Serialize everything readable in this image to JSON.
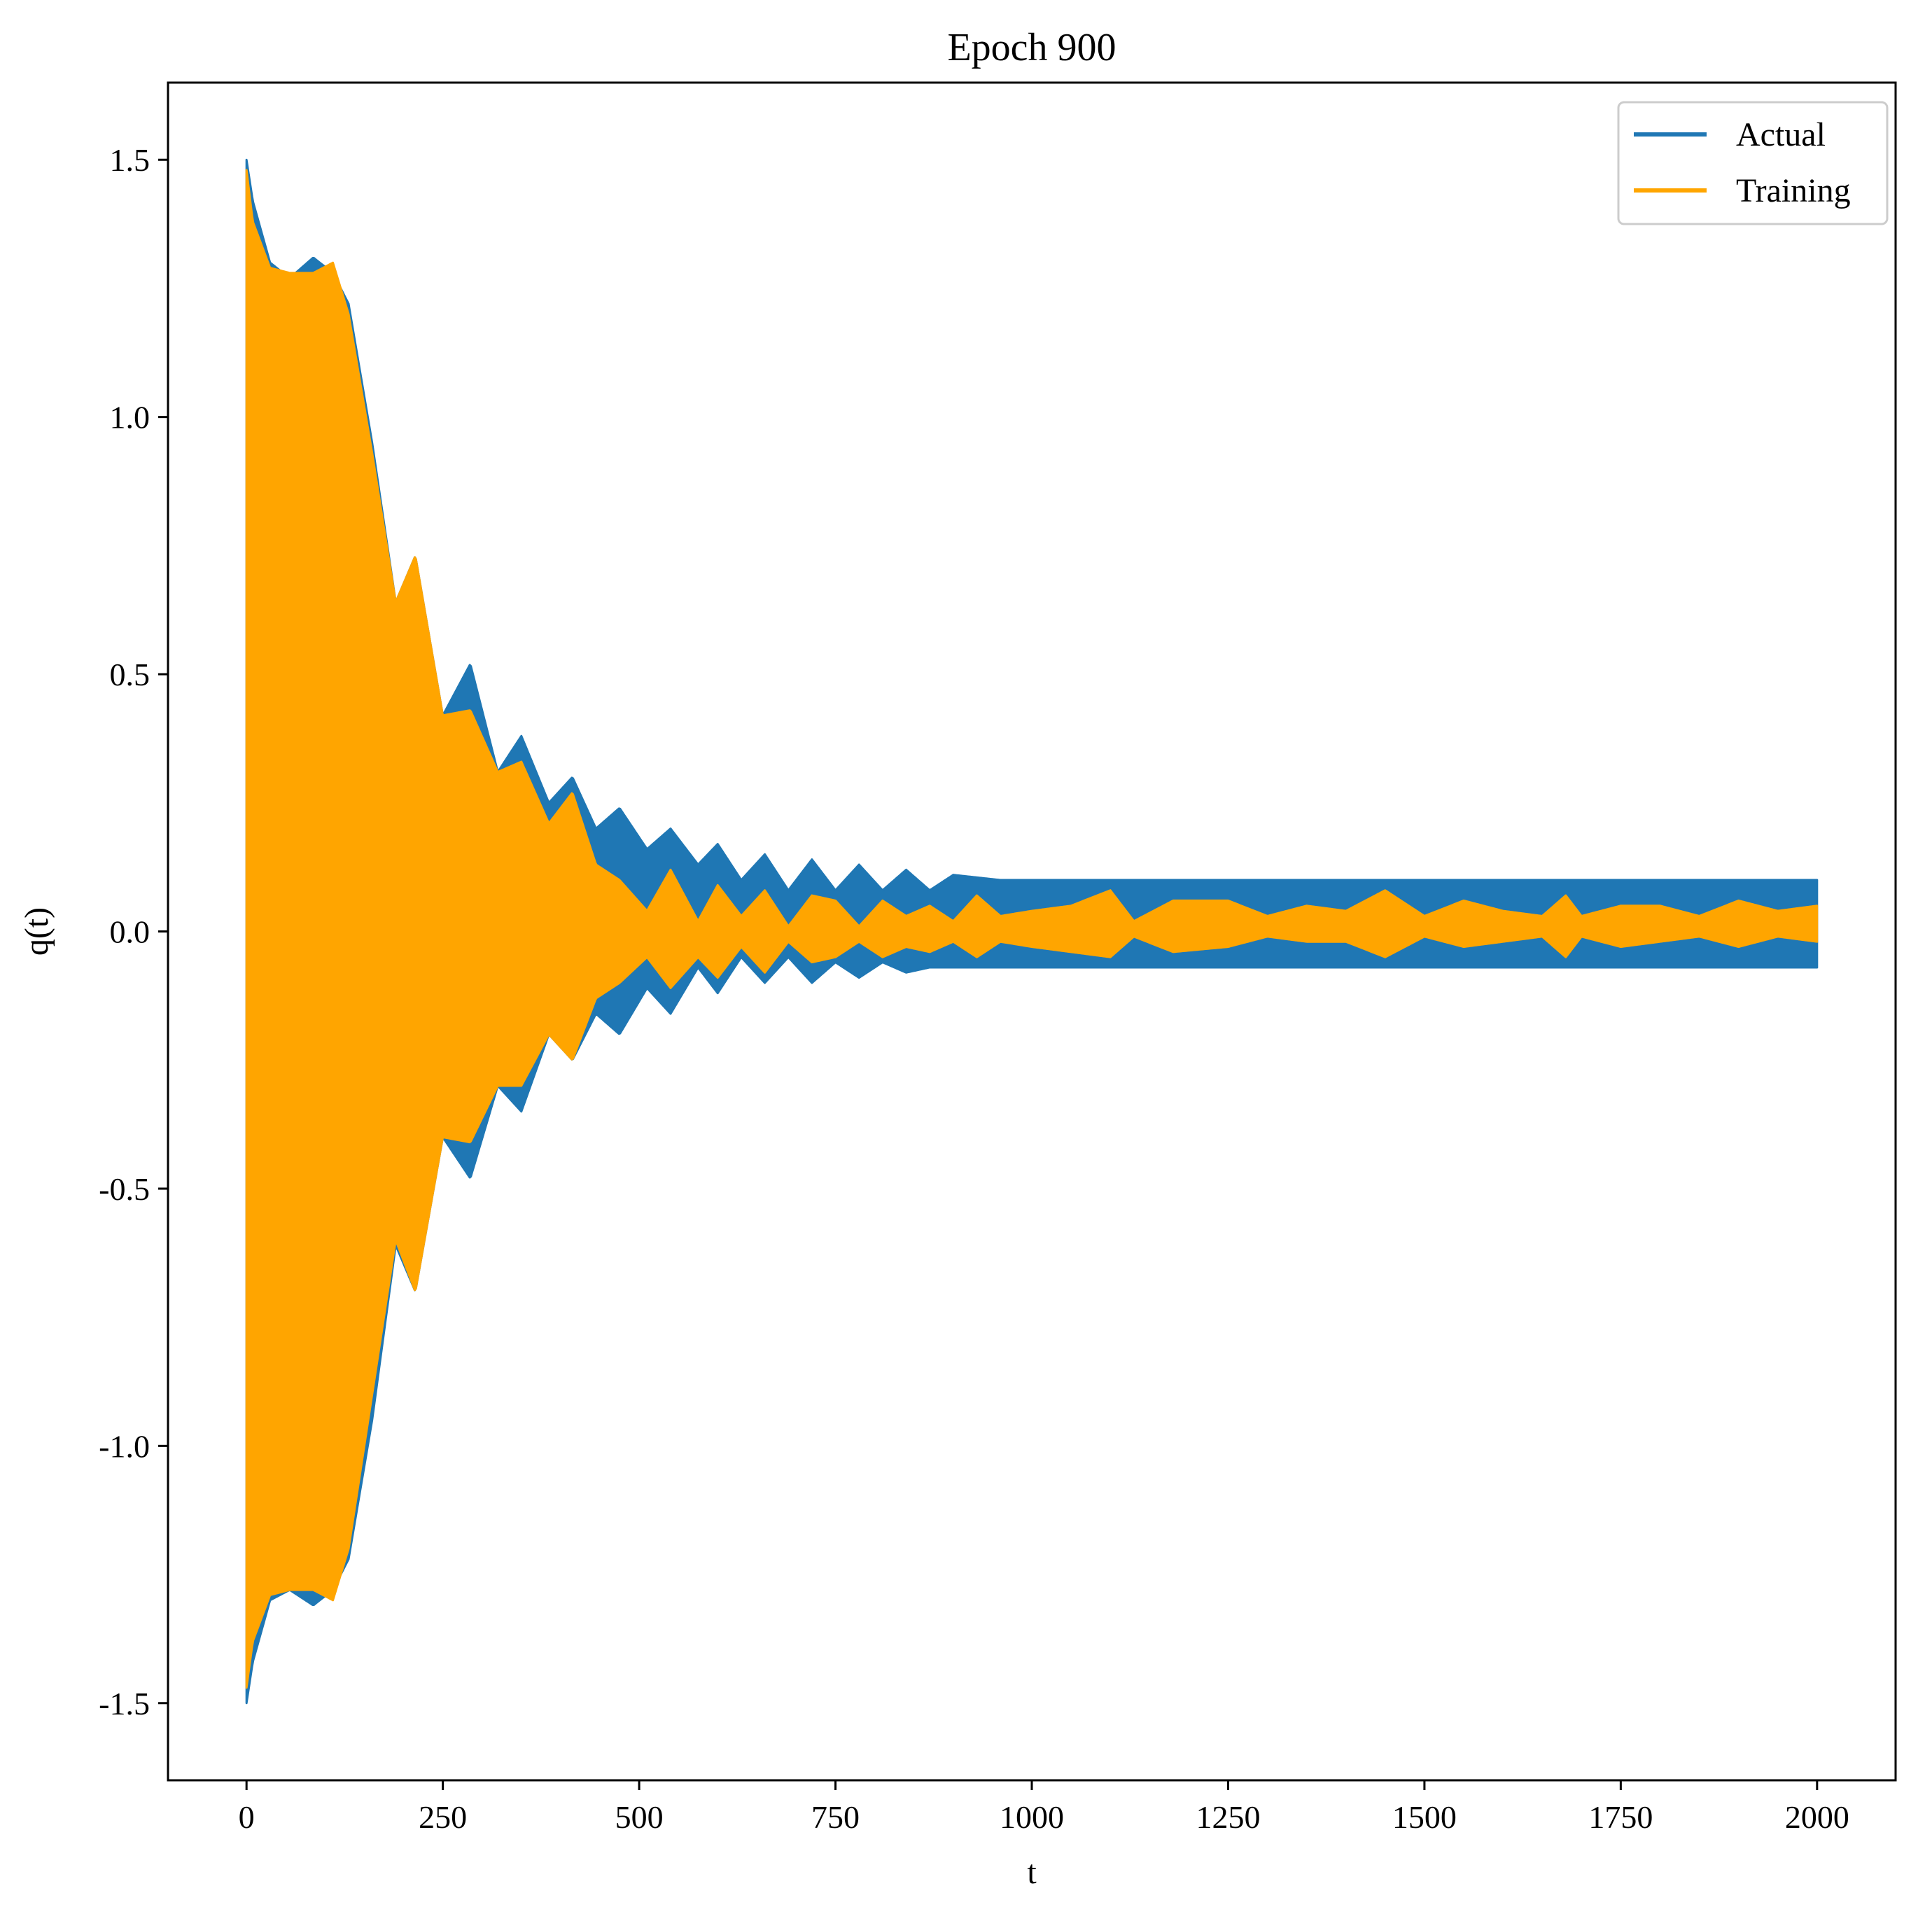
{
  "chart_data": {
    "type": "line",
    "title": "Epoch 900",
    "xlabel": "t",
    "ylabel": "q(t)",
    "xlim": [
      -100,
      2100
    ],
    "ylim": [
      -1.65,
      1.65
    ],
    "grid": false,
    "legend_position": "top-right",
    "x_ticks": [
      0,
      250,
      500,
      750,
      1000,
      1250,
      1500,
      1750,
      2000
    ],
    "x_tick_labels": [
      "0",
      "250",
      "500",
      "750",
      "1000",
      "1250",
      "1500",
      "1750",
      "2000"
    ],
    "y_ticks": [
      1.5,
      1.0,
      0.5,
      0.0,
      -0.5,
      -1.0,
      -1.5
    ],
    "y_tick_labels": [
      "1.5",
      "1.0",
      "0.5",
      "0.0",
      "-0.5",
      "-1.0",
      "-1.5"
    ],
    "series": [
      {
        "name": "Actual",
        "color": "#1f77b4",
        "envelope_t": [
          0,
          8,
          30,
          55,
          85,
          110,
          130,
          160,
          190,
          215,
          250,
          285,
          320,
          350,
          385,
          415,
          445,
          475,
          510,
          540,
          575,
          600,
          630,
          660,
          690,
          720,
          750,
          780,
          810,
          840,
          870,
          900,
          960,
          1000,
          1100,
          1200,
          1300,
          1500,
          1700,
          1900,
          2000
        ],
        "envelope_upper": [
          1.5,
          1.42,
          1.3,
          1.27,
          1.31,
          1.28,
          1.22,
          0.95,
          0.64,
          0.73,
          0.42,
          0.52,
          0.31,
          0.38,
          0.25,
          0.3,
          0.2,
          0.24,
          0.16,
          0.2,
          0.13,
          0.17,
          0.1,
          0.15,
          0.08,
          0.14,
          0.08,
          0.13,
          0.08,
          0.12,
          0.08,
          0.11,
          0.1,
          0.1,
          0.1,
          0.1,
          0.1,
          0.1,
          0.1,
          0.1,
          0.1
        ],
        "envelope_lower": [
          -1.5,
          -1.42,
          -1.3,
          -1.28,
          -1.31,
          -1.28,
          -1.22,
          -0.95,
          -0.61,
          -0.7,
          -0.4,
          -0.48,
          -0.3,
          -0.35,
          -0.2,
          -0.25,
          -0.16,
          -0.2,
          -0.11,
          -0.16,
          -0.07,
          -0.12,
          -0.05,
          -0.1,
          -0.05,
          -0.1,
          -0.06,
          -0.09,
          -0.06,
          -0.08,
          -0.07,
          -0.07,
          -0.07,
          -0.07,
          -0.07,
          -0.07,
          -0.07,
          -0.07,
          -0.07,
          -0.07,
          -0.07
        ]
      },
      {
        "name": "Training",
        "color": "#ffa500",
        "envelope_t": [
          0,
          8,
          30,
          55,
          85,
          110,
          130,
          160,
          190,
          215,
          250,
          285,
          320,
          350,
          385,
          415,
          445,
          475,
          510,
          540,
          575,
          600,
          630,
          660,
          690,
          720,
          750,
          780,
          810,
          840,
          870,
          900,
          930,
          960,
          1000,
          1050,
          1100,
          1130,
          1180,
          1250,
          1300,
          1350,
          1400,
          1450,
          1500,
          1550,
          1600,
          1650,
          1680,
          1700,
          1750,
          1800,
          1850,
          1900,
          1950,
          2000
        ],
        "envelope_upper": [
          1.48,
          1.38,
          1.29,
          1.28,
          1.28,
          1.3,
          1.2,
          0.93,
          0.64,
          0.73,
          0.42,
          0.43,
          0.31,
          0.33,
          0.21,
          0.27,
          0.13,
          0.1,
          0.04,
          0.12,
          0.02,
          0.09,
          0.03,
          0.08,
          0.01,
          0.07,
          0.06,
          0.01,
          0.06,
          0.03,
          0.05,
          0.02,
          0.07,
          0.03,
          0.04,
          0.05,
          0.08,
          0.02,
          0.06,
          0.06,
          0.03,
          0.05,
          0.04,
          0.08,
          0.03,
          0.06,
          0.04,
          0.03,
          0.07,
          0.03,
          0.05,
          0.05,
          0.03,
          0.06,
          0.04,
          0.05
        ],
        "envelope_lower": [
          -1.47,
          -1.38,
          -1.29,
          -1.28,
          -1.28,
          -1.3,
          -1.2,
          -0.9,
          -0.6,
          -0.7,
          -0.4,
          -0.41,
          -0.3,
          -0.3,
          -0.2,
          -0.25,
          -0.13,
          -0.1,
          -0.05,
          -0.11,
          -0.05,
          -0.09,
          -0.03,
          -0.08,
          -0.02,
          -0.06,
          -0.05,
          -0.02,
          -0.05,
          -0.03,
          -0.04,
          -0.02,
          -0.05,
          -0.02,
          -0.03,
          -0.04,
          -0.05,
          -0.01,
          -0.04,
          -0.03,
          -0.01,
          -0.02,
          -0.02,
          -0.05,
          -0.01,
          -0.03,
          -0.02,
          -0.01,
          -0.05,
          -0.01,
          -0.03,
          -0.02,
          -0.01,
          -0.03,
          -0.01,
          -0.02
        ]
      }
    ]
  }
}
